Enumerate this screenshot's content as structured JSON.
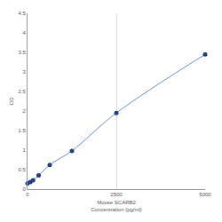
{
  "chart_data": {
    "type": "scatter",
    "xlabel": "Mouse SCARB2\nConcentration (pg/ml)",
    "ylabel": "OD",
    "x": [
      0,
      78.125,
      156.25,
      312.5,
      625,
      1250,
      2500,
      5000
    ],
    "values": [
      0.15,
      0.18,
      0.23,
      0.35,
      0.62,
      0.98,
      1.95,
      3.45
    ],
    "color": "#1f3f7a",
    "marker": "circle",
    "line_style": "solid",
    "xlim": [
      0,
      5000
    ],
    "xticks": [
      0,
      2500,
      5000
    ],
    "ylim": [
      0,
      4.5
    ],
    "yticks": [
      0,
      0.5,
      1,
      1.5,
      2,
      2.5,
      3,
      3.5,
      4,
      4.5
    ],
    "grid": true
  }
}
